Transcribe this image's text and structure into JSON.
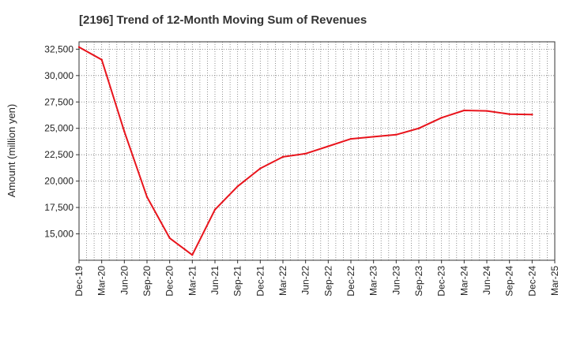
{
  "chart_data": {
    "type": "line",
    "title": "[2196]  Trend of 12-Month Moving Sum of Revenues",
    "ylabel": "Amount (million yen)",
    "xlabel": "",
    "grid": true,
    "ylim": [
      12500,
      33200
    ],
    "yticks": [
      15000,
      17500,
      20000,
      22500,
      25000,
      27500,
      30000,
      32500
    ],
    "ytick_labels": [
      "15,000",
      "17,500",
      "20,000",
      "22,500",
      "25,000",
      "27,500",
      "30,000",
      "32,500"
    ],
    "xtick_labels": [
      "Dec-19",
      "Mar-20",
      "Jun-20",
      "Sep-20",
      "Dec-20",
      "Mar-21",
      "Jun-21",
      "Sep-21",
      "Dec-21",
      "Mar-22",
      "Jun-22",
      "Sep-22",
      "Dec-22",
      "Mar-23",
      "Jun-23",
      "Sep-23",
      "Dec-23",
      "Mar-24",
      "Jun-24",
      "Sep-24",
      "Dec-24",
      "Mar-25"
    ],
    "series": [
      {
        "color": "#e8141c",
        "x": [
          "Dec-19",
          "Mar-20",
          "Jun-20",
          "Sep-20",
          "Dec-20",
          "Mar-21",
          "Jun-21",
          "Sep-21",
          "Dec-21",
          "Mar-22",
          "Jun-22",
          "Sep-22",
          "Dec-22",
          "Mar-23",
          "Jun-23",
          "Sep-23",
          "Dec-23",
          "Mar-24",
          "Jun-24",
          "Sep-24",
          "Dec-24"
        ],
        "values": [
          32700,
          31500,
          24700,
          18500,
          14600,
          13000,
          17300,
          19500,
          21200,
          22300,
          22600,
          23300,
          24000,
          24200,
          24400,
          25000,
          26000,
          26700,
          26650,
          26350,
          26300
        ]
      }
    ]
  }
}
